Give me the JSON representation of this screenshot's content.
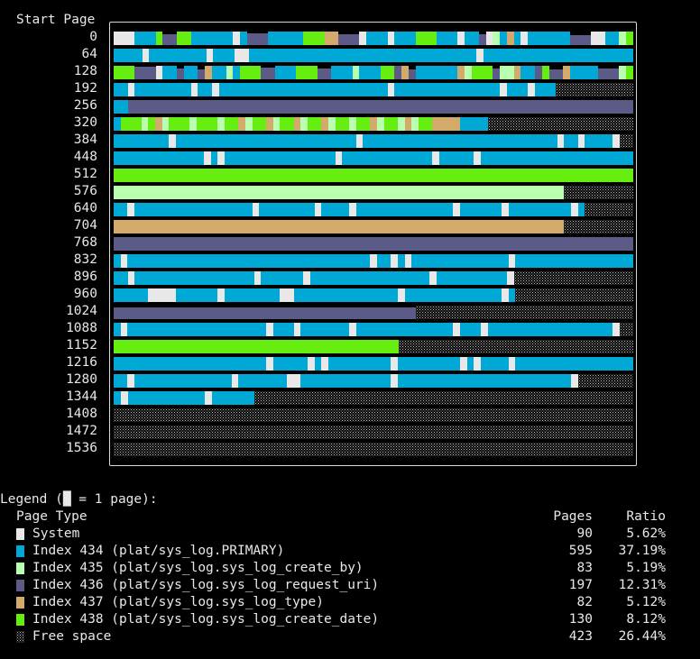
{
  "header": {
    "title": "Start Page"
  },
  "start_pages": [
    "0",
    "64",
    "128",
    "192",
    "256",
    "320",
    "384",
    "448",
    "512",
    "576",
    "640",
    "704",
    "768",
    "832",
    "896",
    "960",
    "1024",
    "1088",
    "1152",
    "1216",
    "1280",
    "1344",
    "1408",
    "1472",
    "1536"
  ],
  "legend": {
    "title": "Legend (█ = 1 page):",
    "col_type": "Page Type",
    "col_pages": "Pages",
    "col_ratio": "Ratio",
    "entries": [
      {
        "key": "S",
        "name": "System",
        "pages": "90",
        "ratio": "5.62%",
        "color": "#e8e8e8"
      },
      {
        "key": "P",
        "name": "Index 434 (plat/sys_log.PRIMARY)",
        "pages": "595",
        "ratio": "37.19%",
        "color": "#00a8d6"
      },
      {
        "key": "B",
        "name": "Index 435 (plat/sys_log.sys_log_create_by)",
        "pages": "83",
        "ratio": "5.19%",
        "color": "#b8ffb0"
      },
      {
        "key": "U",
        "name": "Index 436 (plat/sys_log.sys_log_request_uri)",
        "pages": "197",
        "ratio": "12.31%",
        "color": "#5c5a86"
      },
      {
        "key": "T",
        "name": "Index 437 (plat/sys_log.sys_log_type)",
        "pages": "82",
        "ratio": "5.12%",
        "color": "#d4aa6a"
      },
      {
        "key": "D",
        "name": "Index 438 (plat/sys_log.sys_log_create_date)",
        "pages": "130",
        "ratio": "8.12%",
        "color": "#66ee11"
      },
      {
        "key": "F",
        "name": "Free space",
        "pages": "423",
        "ratio": "26.44%",
        "color": "pattern"
      }
    ]
  },
  "page_map_rows": [
    "SSSPPPDUUDDPPPPPPSPUUUPPPPPDDDTTUUUSPPPSPPPDDDPPPSPPUSBPTPSPPPPPPUUUSSPPBD",
    "PPPPSPPPPPPPPSPPPSSPPPPPPPPPPPPPPPPPPPPPPPPPPPPPPPPSPPPPPPPPPPPPPPPPPPPPP",
    "DDDUUUSPPUPPUTPPBPDDDUUPPPDDDUUPPPBPPPDDUTUPPPPPPTBDDDUBBTPPUDUUTPPPPUUUBD",
    "PPSPPPPPPPPSPPSPPPPPPPPPPPPPPPPPPPPPPPPSPPPPPPPPPPPPPPPSPPPSPPPFFFFFFFFFFF",
    "PPUUUUUUUUUUUUUUUUUUUUUUUUUUUUUUUUUUUUUUUUUUUUUUUUUUUUUUUUUUUUUUUUUUUUUUU",
    "PDDDBDTBDDDBDDDBDDTBDDTBDDTBDDTBDDBDDTBDDBTBDDTTTTPPPPFFFFFFFFFFFFFFFFFFFFF",
    "PPPPPPPPSPPPPPPPPPPPPPPPPPPPPPPPPPPSPPPPPPPPPPPPPPPPPPPPPPPPPPPPSPPSPPPPSFF",
    "PPPPPPPPPPPPPSPSPPPPPPPPPPPPPPPPSPPPPPPPPPPPPPSPPPPPSPPPPPPPPPPPPPPPPPPPPPP",
    "DDDDDDDDDDDDDDDDDDDDDDDDDDDDDDDDDDDDDDDDDDDDDDDDDDDDDDDDDDDDDDDDDDDDDDDDD",
    "BBBBBBBBBBBBBBBBBBBBBBBBBBBBBBBBBBBBBBBBBBBBBBBBBBBBBBBBBBBBBBBBBFFFFFFFFFF",
    "PPSPPPPPPPPPPPPPPPPPSPPPPPPPPSPPPPSPPPPPPPPPPPPPPSPPPPPPSPPPPPPPPPSPFFFFFFF",
    "TTTTTTTTTTTTTTTTTTTTTTTTTTTTTTTTTTTTTTTTTTTTTTTTTTTTTTTTTTTTTTTTTFFFFFFFFFF",
    "UUUUUUUUUUUUUUUUUUUUUUUUUUUUUUUUUUUUUUUUUUUUUUUUUUUUUUUUUUUUUUUUUUUUUUUUUUU",
    "PSPPPPPPPPPPPPPPPPPPPPPPPPPPPPPPPPPPPSPPSPSPPPPPPPPPPPPPPSPPPPPPPPPPPPPPPPP",
    "PPSPPPPPPPPPPPPPPPPPSPPPPPPSPPPPPPPPPPPPPPPPPSPPPPPPPPPPSFFFFFFFFFFFFFFFFF",
    "PPPPPSSSSPPPPPPSPPPPPPPPSSPPPPPPPPPPPPPPPSPPPPPPPPPPPPPPSPFFFFFFFFFFFFFFFFF",
    "UUUUUUUUUUUUUUUUUUUUUUUUUUUUUUUUUUUUUUUUUUUFFFFFFFFFFFFFFFFFFFFFFFFFFFFFFF",
    "PSPPPPPPPPPPPPPPPPPPPPSPPPSPPPPPPPSPPPPPPPPPPPPPPSPPPSPPPPPPPPPPPPPPPPPPSFF",
    "DDDDDDDDDDDDDDDDDDDDDDDDDDDDDDDDDDDDDDDDFFFFFFFFFFFFFFFFFFFFFFFFFFFFFFFFF",
    "PPPPPPPPPPPPPPPPPPPPPPSPPPPPSPSPPPPPPPPPSPPPPPPPPPSPSPPPPSPPPPPPPPPPPPPPPPP",
    "PPSPPPPPPPPPPPPPPSPPPPPPPSSPPPPPPPPPPPPPSPPPPPPPPPPPPPPPPPPPPPPPPPSFFFFFFFF",
    "PSPPPPPPPPPPPSPPPPPPFFFFFFFFFFFFFFFFFFFFFFFFFFFFFFFFFFFFFFFFFFFFFFFFFFFFFF",
    "FFFFFFFFFFFFFFFFFFFFFFFFFFFFFFFFFFFFFFFFFFFFFFFFFFFFFFFFFFFFFFFFFFFFFFFFFFF",
    "FFFFFFFFFFFFFFFFFFFFFFFFFFFFFFFFFFFFFFFFFFFFFFFFFFFFFFFFFFFFFFFFFFFFFFFFFFF",
    "FFFFFFFFFFFFFFFFFFFFFFFFFFFFFFFFFFFFFFFFFFFFFFFFFFFFFFFFFFFFFFFFFFFFFFFFFFF"
  ]
}
